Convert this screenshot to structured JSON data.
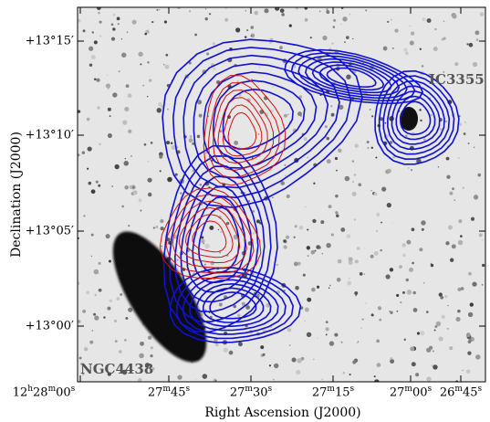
{
  "figure": {
    "x_axis": {
      "label": "Right Ascension (J2000)",
      "ticks": [
        "12h28m00s",
        "27m45s",
        "27m30s",
        "27m15s",
        "27m00s",
        "26m45s"
      ]
    },
    "y_axis": {
      "label": "Declination (J2000)",
      "ticks": [
        "+13°15′",
        "+13°10′",
        "+13°05′",
        "+13°00′"
      ]
    },
    "annotations": [
      "IC3355",
      "NGC4438"
    ]
  }
}
